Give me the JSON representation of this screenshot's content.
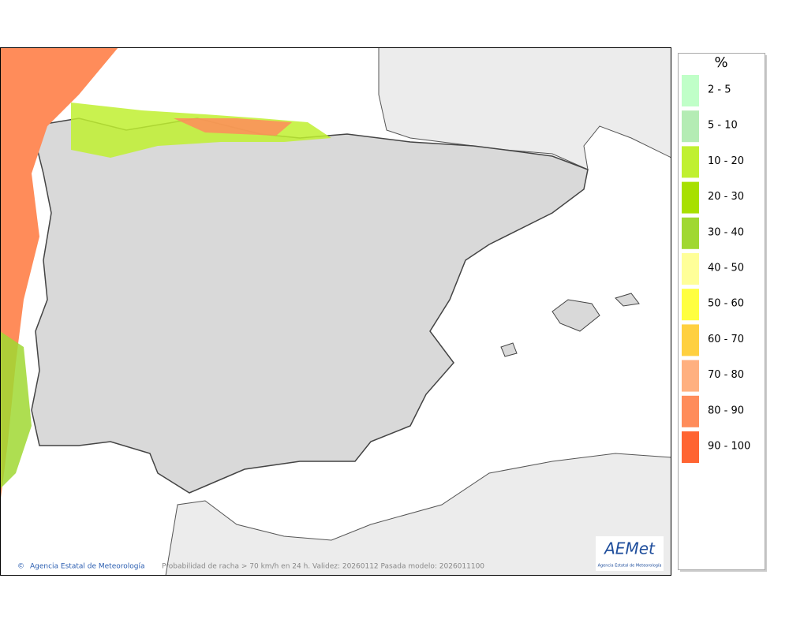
{
  "map": {
    "footer_left": "Agencia Estatal de Meteorología",
    "footer_center": "Probabilidad de racha > 70 km/h en 24 h. Validez: 20260112 Pasada modelo: 2026011100",
    "logo_text": "AEMet",
    "logo_subtitle": "Agencia Estatal de Meteorología"
  },
  "legend": {
    "title": "%",
    "items": [
      {
        "label": "2 - 5",
        "color": "#c0ffc8"
      },
      {
        "label": "5 - 10",
        "color": "#b4ecb4"
      },
      {
        "label": "10 - 20",
        "color": "#c0f030"
      },
      {
        "label": "20 - 30",
        "color": "#a8e000"
      },
      {
        "label": "30 - 40",
        "color": "#a0d832"
      },
      {
        "label": "40 - 50",
        "color": "#ffff99"
      },
      {
        "label": "50 - 60",
        "color": "#ffff40"
      },
      {
        "label": "60 - 70",
        "color": "#ffd040"
      },
      {
        "label": "70 - 80",
        "color": "#ffb080"
      },
      {
        "label": "80 - 90",
        "color": "#ff8c5a"
      },
      {
        "label": "90 - 100",
        "color": "#ff6432"
      }
    ]
  }
}
